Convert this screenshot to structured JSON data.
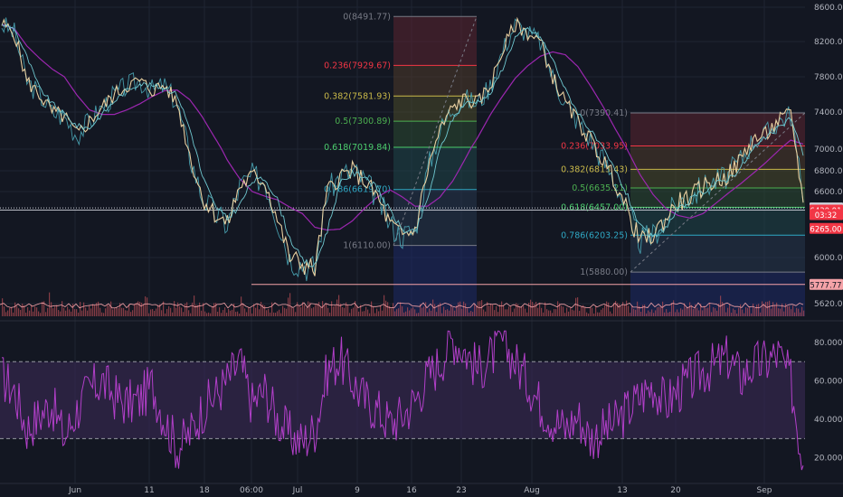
{
  "colors": {
    "background": "#131722",
    "grid": "#1f2433",
    "axis_text": "#b2b5be",
    "price": "#e8cfa0",
    "ma_fast": "#4ba9b8",
    "ma_slow": "#9c27b0",
    "volume": "#b74d54",
    "rsi": "#b23fc9",
    "rsi_band": "#3a2a55",
    "fib_line": "#787b86"
  },
  "chart_data": [
    {
      "type": "line",
      "name": "price-pane",
      "y_ticks": [
        "8600.00",
        "8200.00",
        "7800.00",
        "7400.00",
        "7000.00",
        "6800.00",
        "6600.00",
        "6000.00",
        "5620.00"
      ],
      "ylim": [
        5500,
        8700
      ],
      "x_ticks": [
        "Jun",
        "11",
        "18",
        "06:00",
        "Jul",
        "9",
        "16",
        "23",
        "Aug",
        "13",
        "20",
        "Sep"
      ],
      "price_badges": [
        {
          "label": "6451.08",
          "value": 6451,
          "color": "#d0d3dc",
          "text_color": "#131722"
        },
        {
          "label": "6430.91",
          "value": 6431,
          "color": "#f23645",
          "text_color": "#ffffff"
        },
        {
          "label": "03:32",
          "value": 6390,
          "color": "#f23645",
          "text_color": "#ffffff"
        },
        {
          "label": "6265.00",
          "value": 6265,
          "color": "#f23645",
          "text_color": "#ffffff"
        },
        {
          "label": "5777.77",
          "value": 5778,
          "color": "#f5a3a8",
          "text_color": "#131722"
        }
      ],
      "fib_retracements": [
        {
          "levels": [
            {
              "label": "0(8491.77)",
              "price": 8491.77,
              "color": "#787b86"
            },
            {
              "label": "0.236(7929.67)",
              "price": 7929.67,
              "color": "#f23645"
            },
            {
              "label": "0.382(7581.93)",
              "price": 7581.93,
              "color": "#c9b949"
            },
            {
              "label": "0.5(7300.89)",
              "price": 7300.89,
              "color": "#4caf50"
            },
            {
              "label": "0.618(7019.84)",
              "price": 7019.84,
              "color": "#4cce6e"
            },
            {
              "label": "0.786(6619.70)",
              "price": 6619.7,
              "color": "#2fa8c4"
            },
            {
              "label": "1(6110.00)",
              "price": 6110.0,
              "color": "#787b86"
            }
          ]
        },
        {
          "levels": [
            {
              "label": "0(7390.41)",
              "price": 7390.41,
              "color": "#787b86"
            },
            {
              "label": "0.236(7033.95)",
              "price": 7033.95,
              "color": "#f23645"
            },
            {
              "label": "0.382(6813.43)",
              "price": 6813.43,
              "color": "#c9b949"
            },
            {
              "label": "0.5(6635.21)",
              "price": 6635.21,
              "color": "#4caf50"
            },
            {
              "label": "0.618(6457.00)",
              "price": 6457.0,
              "color": "#4cce6e"
            },
            {
              "label": "0.786(6203.25)",
              "price": 6203.25,
              "color": "#2fa8c4"
            },
            {
              "label": "1(5880.00)",
              "price": 5880.0,
              "color": "#787b86"
            }
          ]
        }
      ],
      "series": [
        {
          "values": [
            8400,
            8300,
            7750,
            7600,
            7400,
            7350,
            7150,
            7300,
            7450,
            7600,
            7700,
            7750,
            7650,
            7700,
            7500,
            6950,
            6550,
            6400,
            6300,
            6650,
            6750,
            6700,
            6350,
            6000,
            5950,
            5900,
            6600,
            6750,
            6800,
            6700,
            6550,
            6300,
            6200,
            6250,
            6800,
            7200,
            7450,
            7550,
            7500,
            7700,
            8100,
            8400,
            8300,
            8200,
            7800,
            7500,
            7300,
            7100,
            6900,
            6700,
            6400,
            6150,
            6200,
            6350,
            6500,
            6550,
            6650,
            6700,
            6750,
            6900,
            7100,
            7150,
            7300,
            7380,
            6500
          ]
        }
      ]
    },
    {
      "type": "line",
      "name": "rsi-pane",
      "y_ticks": [
        "80.0000",
        "60.0000",
        "40.0000",
        "20.0000"
      ],
      "ylim": [
        10,
        88
      ],
      "bands": [
        30,
        70
      ],
      "series": [
        {
          "values": [
            62,
            55,
            35,
            42,
            48,
            30,
            45,
            55,
            60,
            52,
            48,
            50,
            58,
            40,
            25,
            32,
            45,
            52,
            60,
            70,
            48,
            55,
            40,
            32,
            28,
            35,
            65,
            72,
            60,
            50,
            45,
            38,
            42,
            50,
            62,
            70,
            82,
            76,
            66,
            72,
            80,
            70,
            60,
            48,
            40,
            35,
            42,
            30,
            34,
            38,
            45,
            52,
            58,
            48,
            55,
            60,
            65,
            68,
            72,
            62,
            68,
            70,
            74,
            60,
            16
          ]
        }
      ]
    }
  ]
}
